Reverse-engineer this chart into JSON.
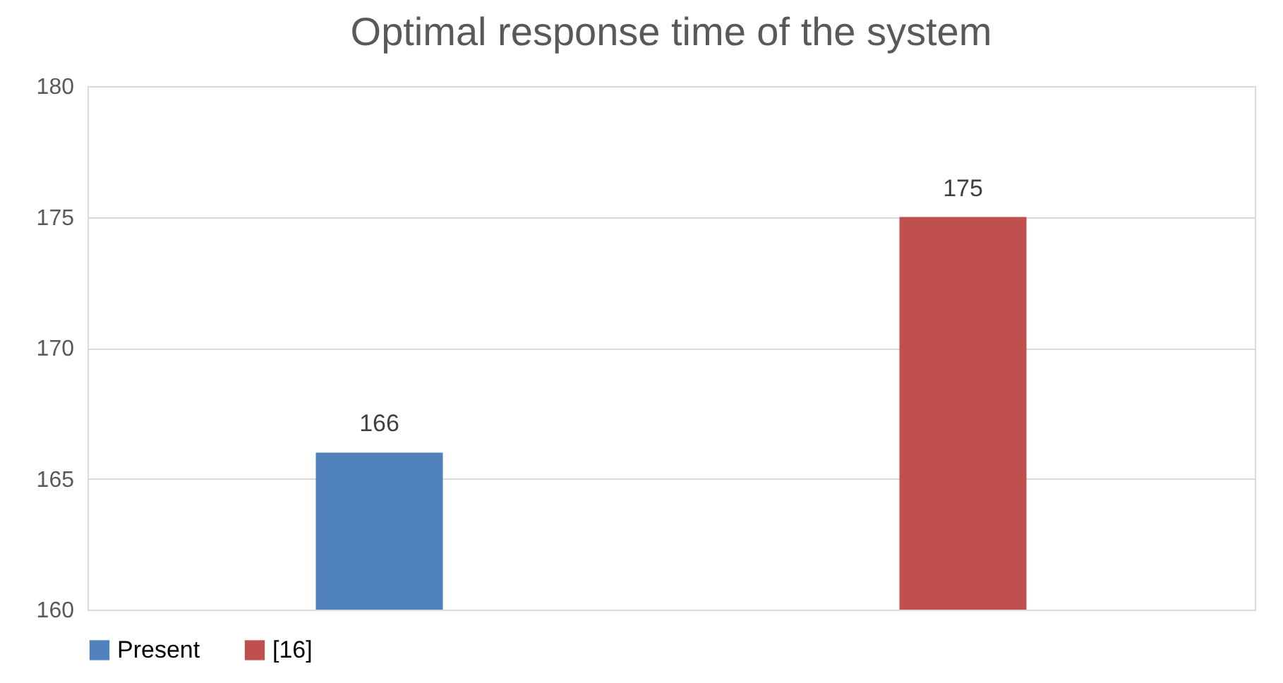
{
  "chart_data": {
    "type": "bar",
    "title": "Optimal response time of the system",
    "categories": [
      null,
      null
    ],
    "series": [
      {
        "name": "Present",
        "color": "#4f81bd",
        "values": [
          166,
          null
        ]
      },
      {
        "name": "[16]",
        "color": "#c0504d",
        "values": [
          null,
          175
        ]
      }
    ],
    "ylim": [
      160,
      180
    ],
    "yticks": [
      160,
      165,
      170,
      175,
      180
    ],
    "grid": "y",
    "legend": "bottom",
    "data_labels": true
  }
}
